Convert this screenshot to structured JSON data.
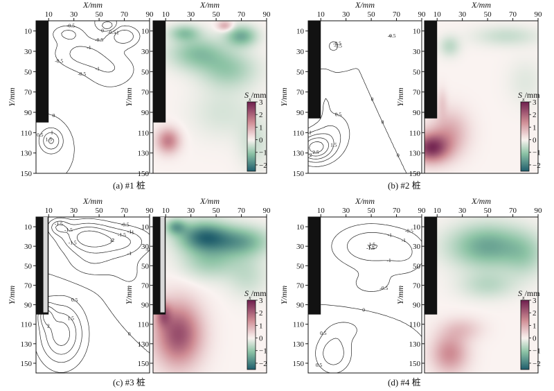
{
  "panels": [
    {
      "caption": "(a) #1 桩",
      "pile": {
        "x_end": 10,
        "y_end": 100,
        "style": "black"
      },
      "contour_labels": [
        "-1.5",
        "-1",
        "-0.5",
        "-1",
        "-0.5",
        "-1.5",
        "-1",
        "-0.5",
        "0",
        "0.5",
        "-0.5",
        "0",
        "-0.5",
        "1.5",
        "1"
      ],
      "field": {
        "blobs": [
          {
            "x": 35,
            "y": 32,
            "sx": 22,
            "sy": 16,
            "v": -1.1
          },
          {
            "x": 70,
            "y": 15,
            "sx": 12,
            "sy": 10,
            "v": -1.4
          },
          {
            "x": 25,
            "y": 12,
            "sx": 12,
            "sy": 8,
            "v": -1.0
          },
          {
            "x": 60,
            "y": 48,
            "sx": 22,
            "sy": 18,
            "v": -0.9
          },
          {
            "x": 55,
            "y": 90,
            "sx": 25,
            "sy": 25,
            "v": -0.35
          },
          {
            "x": 80,
            "y": 120,
            "sx": 12,
            "sy": 25,
            "v": -0.45
          },
          {
            "x": 57,
            "y": 5,
            "sx": 6,
            "sy": 5,
            "v": 1.1
          },
          {
            "x": 12,
            "y": 118,
            "sx": 9,
            "sy": 12,
            "v": 1.6
          }
        ]
      }
    },
    {
      "caption": "(b) #2 桩",
      "pile": {
        "x_end": 10,
        "y_end": 96,
        "style": "black"
      },
      "contour_labels": [
        "-1",
        "-0.5",
        "-1",
        "-0.5",
        "0",
        "-0.5",
        "0",
        "0.5",
        "1",
        "1.5",
        "2",
        "2.5",
        "0"
      ],
      "field": {
        "blobs": [
          {
            "x": 20,
            "y": 25,
            "sx": 8,
            "sy": 10,
            "v": -0.6
          },
          {
            "x": 65,
            "y": 15,
            "sx": 25,
            "sy": 10,
            "v": -0.5
          },
          {
            "x": 80,
            "y": 60,
            "sx": 14,
            "sy": 22,
            "v": -0.25
          },
          {
            "x": 5,
            "y": 125,
            "sx": 14,
            "sy": 14,
            "v": 2.6
          },
          {
            "x": 20,
            "y": 110,
            "sx": 15,
            "sy": 22,
            "v": 1.0
          },
          {
            "x": 14,
            "y": 80,
            "sx": 4,
            "sy": 14,
            "v": 0.45
          }
        ]
      }
    },
    {
      "caption": "(c) #3 桩",
      "pile": {
        "x_end": 10,
        "y_end": 100,
        "style": "hatched"
      },
      "contour_labels": [
        "-1.5",
        "-2",
        "-1.5",
        "-1",
        "-1.5",
        "-1",
        "-2",
        "-2.5",
        "-1.5",
        "-0.5",
        "-1",
        "0",
        "-0.5",
        "1",
        "0.5",
        "1.5",
        "2"
      ],
      "field": {
        "blobs": [
          {
            "x": 40,
            "y": 20,
            "sx": 20,
            "sy": 15,
            "v": -2.1
          },
          {
            "x": 70,
            "y": 25,
            "sx": 22,
            "sy": 15,
            "v": -1.4
          },
          {
            "x": 45,
            "y": 45,
            "sx": 22,
            "sy": 18,
            "v": -0.9
          },
          {
            "x": 18,
            "y": 10,
            "sx": 8,
            "sy": 8,
            "v": -1.3
          },
          {
            "x": 75,
            "y": 60,
            "sx": 16,
            "sy": 22,
            "v": -0.5
          },
          {
            "x": 20,
            "y": 120,
            "sx": 18,
            "sy": 32,
            "v": 2.3
          },
          {
            "x": 8,
            "y": 100,
            "sx": 6,
            "sy": 12,
            "v": 1.3
          }
        ]
      }
    },
    {
      "caption": "(d) #4 桩",
      "pile": {
        "x_end": 10,
        "y_end": 100,
        "style": "black"
      },
      "contour_labels": [
        "-1",
        "-1.5",
        "-2",
        "-1.5",
        "-1",
        "-1.5",
        "-1",
        "-0.5",
        "0",
        "-0.5",
        "0",
        "0.5",
        "0.5"
      ],
      "field": {
        "blobs": [
          {
            "x": 50,
            "y": 30,
            "sx": 30,
            "sy": 22,
            "v": -1.5
          },
          {
            "x": 80,
            "y": 40,
            "sx": 16,
            "sy": 22,
            "v": -0.6
          },
          {
            "x": 50,
            "y": 70,
            "sx": 22,
            "sy": 14,
            "v": -0.6
          },
          {
            "x": 20,
            "y": 140,
            "sx": 14,
            "sy": 20,
            "v": 1.4
          },
          {
            "x": 30,
            "y": 115,
            "sx": 16,
            "sy": 12,
            "v": 0.6
          }
        ]
      }
    }
  ],
  "chart_data": {
    "type": "heatmap",
    "xlabel": "X/mm",
    "ylabel": "Y/mm",
    "colorbar_label": "Sx/mm",
    "x_ticks": [
      10,
      30,
      50,
      70,
      90
    ],
    "y_ticks_top": [
      10,
      30,
      50,
      70,
      90,
      110,
      130,
      150
    ],
    "y_ticks_bottom": [
      10,
      30,
      50,
      70,
      90,
      110,
      130,
      150
    ],
    "colorbar_ticks": [
      3,
      2,
      1,
      0,
      -1,
      -2
    ],
    "xlim": [
      0,
      90
    ],
    "ylim_top": [
      0,
      150
    ],
    "ylim_bottom": [
      0,
      160
    ],
    "colorbar_range": [
      -2.5,
      3
    ],
    "colors": {
      "positive": "#6e1f4e",
      "mid_positive": "#cf8c94",
      "zero": "#faf3f1",
      "mid_negative": "#8cc3a5",
      "negative": "#1f5d6c"
    }
  }
}
